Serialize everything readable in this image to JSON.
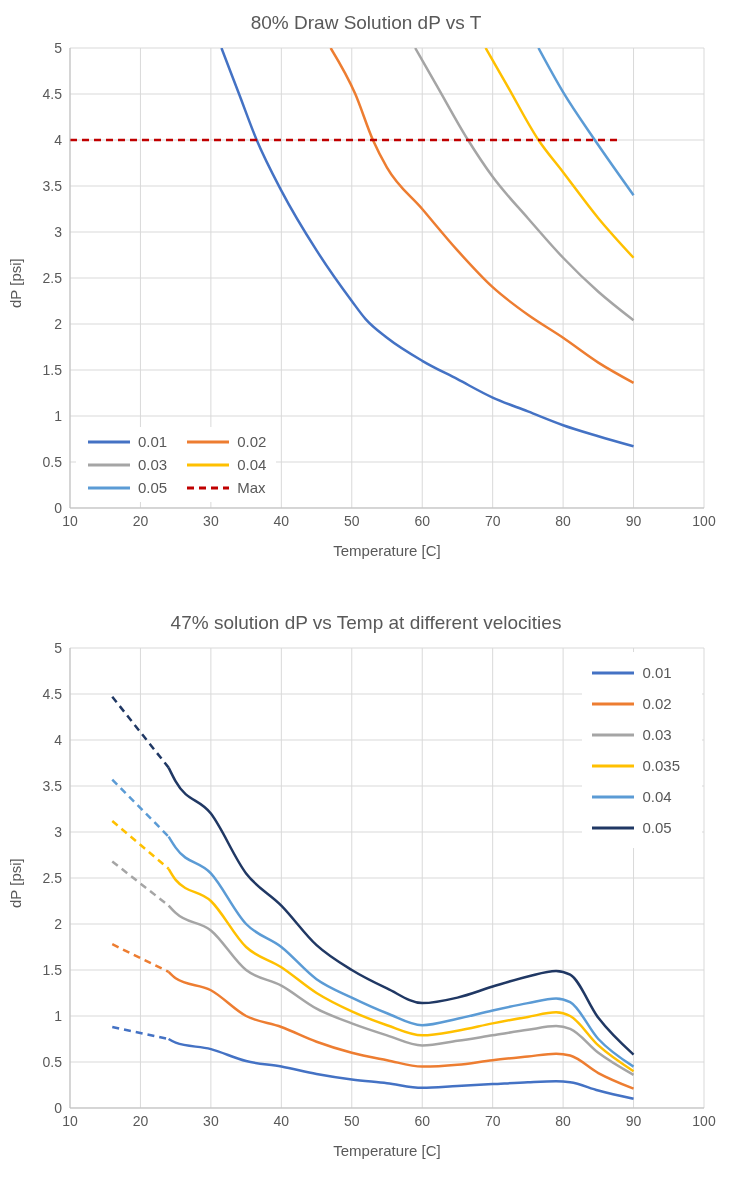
{
  "chart_data": [
    {
      "type": "line",
      "title": "80% Draw Solution dP vs T",
      "xlabel": "Temperature [C]",
      "ylabel": "dP [psi]",
      "xlim": [
        10,
        100
      ],
      "xticks": [
        10,
        20,
        30,
        40,
        50,
        60,
        70,
        80,
        90,
        100
      ],
      "ylim": [
        0,
        5
      ],
      "yticks": [
        0,
        0.5,
        1,
        1.5,
        2,
        2.5,
        3,
        3.5,
        4,
        4.5,
        5
      ],
      "grid": true,
      "legend": "bottom left",
      "series": [
        {
          "name": "0.01",
          "color": "#4472c4",
          "x": [
            31.5,
            34,
            36.5,
            40,
            45,
            50,
            52,
            55,
            60,
            65,
            70,
            75,
            80,
            85,
            90
          ],
          "values": [
            5,
            4.5,
            4,
            3.45,
            2.8,
            2.25,
            2.05,
            1.85,
            1.6,
            1.4,
            1.2,
            1.05,
            0.9,
            0.78,
            0.67
          ]
        },
        {
          "name": "0.02",
          "color": "#ed7d31",
          "x": [
            47,
            50.5,
            53,
            55,
            60,
            65,
            70,
            75,
            80,
            85,
            90
          ],
          "values": [
            5,
            4.5,
            4,
            3.7,
            3.25,
            2.8,
            2.4,
            2.1,
            1.85,
            1.58,
            1.36
          ]
        },
        {
          "name": "0.03",
          "color": "#a5a5a5",
          "x": [
            59,
            62,
            66.5,
            70,
            75,
            80,
            85,
            90
          ],
          "values": [
            5,
            4.6,
            4,
            3.6,
            3.15,
            2.72,
            2.35,
            2.04
          ]
        },
        {
          "name": "0.04",
          "color": "#ffc000",
          "x": [
            69,
            72,
            76.5,
            80,
            85,
            90
          ],
          "values": [
            5,
            4.6,
            4,
            3.65,
            3.15,
            2.72
          ]
        },
        {
          "name": "0.05",
          "color": "#5b9bd5",
          "x": [
            76.5,
            80,
            84.5,
            90
          ],
          "values": [
            5,
            4.52,
            4,
            3.4
          ]
        },
        {
          "name": "Max",
          "color": "#c00000",
          "x": [
            10,
            88
          ],
          "values": [
            4,
            4
          ],
          "line_style": "dashed"
        }
      ]
    },
    {
      "type": "line",
      "title": "47% solution dP vs Temp at different velocities",
      "xlabel": "Temperature [C]",
      "ylabel": "dP [psi]",
      "xlim": [
        10,
        100
      ],
      "xticks": [
        10,
        20,
        30,
        40,
        50,
        60,
        70,
        80,
        90,
        100
      ],
      "ylim": [
        0,
        5
      ],
      "yticks": [
        0,
        0.5,
        1,
        1.5,
        2,
        2.5,
        3,
        3.5,
        4,
        4.5,
        5
      ],
      "grid": true,
      "legend": "top right",
      "series": [
        {
          "color": "#4472c4",
          "x": [
            16,
            24
          ],
          "values": [
            0.88,
            0.75
          ],
          "line_style": "dashed"
        },
        {
          "color": "#ed7d31",
          "x": [
            16,
            24
          ],
          "values": [
            1.78,
            1.48
          ],
          "line_style": "dashed"
        },
        {
          "color": "#a5a5a5",
          "x": [
            16,
            24
          ],
          "values": [
            2.68,
            2.2
          ],
          "line_style": "dashed"
        },
        {
          "color": "#ffc000",
          "x": [
            16,
            24
          ],
          "values": [
            3.12,
            2.6
          ],
          "line_style": "dashed"
        },
        {
          "color": "#5b9bd5",
          "x": [
            16,
            24
          ],
          "values": [
            3.57,
            2.95
          ],
          "line_style": "dashed"
        },
        {
          "color": "#203864",
          "x": [
            16,
            24
          ],
          "values": [
            4.47,
            3.7
          ],
          "line_style": "dashed"
        },
        {
          "name": "0.01",
          "color": "#4472c4",
          "x": [
            24,
            25,
            30,
            35,
            40,
            45,
            50,
            55,
            60,
            65,
            70,
            75,
            79,
            81,
            85,
            90
          ],
          "values": [
            0.75,
            0.71,
            0.64,
            0.51,
            0.45,
            0.37,
            0.31,
            0.27,
            0.22,
            0.24,
            0.26,
            0.28,
            0.29,
            0.28,
            0.19,
            0.1
          ]
        },
        {
          "name": "0.02",
          "color": "#ed7d31",
          "x": [
            24,
            25,
            30,
            35,
            40,
            45,
            50,
            55,
            60,
            65,
            70,
            75,
            79,
            81,
            85,
            90
          ],
          "values": [
            1.48,
            1.41,
            1.28,
            1,
            0.88,
            0.72,
            0.6,
            0.52,
            0.45,
            0.47,
            0.52,
            0.56,
            0.59,
            0.57,
            0.38,
            0.21
          ]
        },
        {
          "name": "0.03",
          "color": "#a5a5a5",
          "x": [
            24,
            25,
            30,
            35,
            40,
            45,
            50,
            55,
            60,
            65,
            70,
            75,
            79,
            81,
            85,
            90
          ],
          "values": [
            2.2,
            2.12,
            1.93,
            1.5,
            1.33,
            1.08,
            0.92,
            0.79,
            0.68,
            0.73,
            0.79,
            0.85,
            0.89,
            0.86,
            0.6,
            0.36
          ]
        },
        {
          "name": "0.035",
          "color": "#ffc000",
          "x": [
            24,
            25,
            30,
            35,
            40,
            45,
            50,
            55,
            60,
            65,
            70,
            75,
            79,
            81,
            85,
            90
          ],
          "values": [
            2.6,
            2.48,
            2.25,
            1.75,
            1.53,
            1.25,
            1.05,
            0.9,
            0.79,
            0.84,
            0.92,
            0.99,
            1.04,
            1,
            0.68,
            0.4
          ]
        },
        {
          "name": "0.04",
          "color": "#5b9bd5",
          "x": [
            24,
            25,
            30,
            35,
            40,
            45,
            50,
            55,
            60,
            65,
            70,
            75,
            79,
            81,
            85,
            90
          ],
          "values": [
            2.95,
            2.83,
            2.55,
            2,
            1.75,
            1.4,
            1.2,
            1.03,
            0.9,
            0.97,
            1.06,
            1.14,
            1.19,
            1.15,
            0.75,
            0.45
          ]
        },
        {
          "name": "0.05",
          "color": "#203864",
          "x": [
            24,
            25,
            30,
            35,
            40,
            45,
            50,
            55,
            60,
            65,
            70,
            75,
            79,
            81,
            85,
            90
          ],
          "values": [
            3.7,
            3.55,
            3.2,
            2.55,
            2.2,
            1.77,
            1.5,
            1.3,
            1.14,
            1.2,
            1.32,
            1.43,
            1.49,
            1.45,
            0.98,
            0.58
          ]
        }
      ]
    }
  ]
}
